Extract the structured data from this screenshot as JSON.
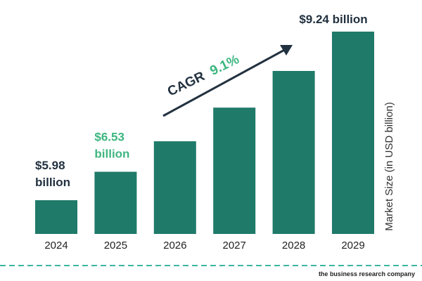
{
  "chart_data": {
    "type": "bar",
    "categories": [
      "2024",
      "2025",
      "2026",
      "2027",
      "2028",
      "2029"
    ],
    "values": [
      5.98,
      6.53,
      7.12,
      7.77,
      8.48,
      9.24
    ],
    "value_labels": [
      {
        "line1": "$5.98",
        "line2": "billion"
      },
      {
        "line1": "$6.53",
        "line2": "billion"
      },
      null,
      null,
      null,
      {
        "line1": "$9.24 billion",
        "line2": ""
      }
    ],
    "ylabel": "Market Size (in USD billion)",
    "annotation": {
      "prefix": "CAGR",
      "value": "9.1%"
    },
    "colors": {
      "bar": "#1f7a69",
      "label_dark": "#22313f",
      "label_green": "#3cb67f",
      "divider": "#3cb6a0"
    },
    "grid": false,
    "legend": "none"
  },
  "footer": {
    "brand": "the business research company"
  }
}
